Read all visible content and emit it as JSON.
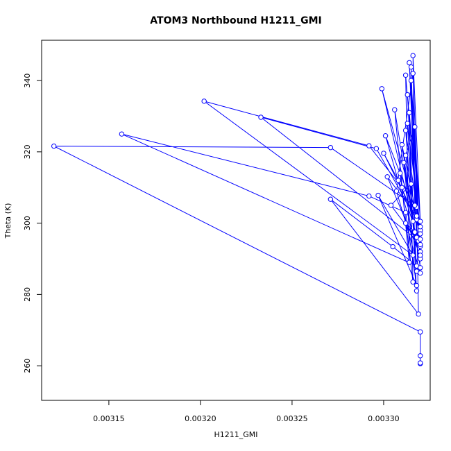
{
  "chart_data": {
    "type": "line",
    "title": "ATOM3 Northbound H1211_GMI",
    "x_label": "H1211_GMI",
    "y_label": "Theta (K)",
    "color": "#0000ff",
    "markers": true,
    "xlim": [
      0.0031133,
      0.0033254
    ],
    "ylim": [
      250.3,
      351.3
    ],
    "xticks": [
      0.00315,
      {
        "value": 0.0032,
        "label": "0.00320"
      },
      0.00325,
      {
        "value": 0.0033,
        "label": "0.00330"
      }
    ],
    "yticks": [
      260,
      280,
      300,
      320,
      340
    ],
    "x": [
      0.00332,
      0.00332,
      0.00332,
      0.00332,
      0.00312,
      0.003271,
      0.003318,
      0.003319,
      0.003271,
      0.003305,
      0.003318,
      0.003157,
      0.003292,
      0.003312,
      0.003318,
      0.003297,
      0.003316,
      0.003202,
      0.003292,
      0.00331,
      0.003319,
      0.003233,
      0.003296,
      0.003318,
      0.0033,
      0.003308,
      0.00332,
      0.003299,
      0.003316,
      0.003306,
      0.003314,
      0.003312,
      0.00332,
      0.003314,
      0.003318,
      0.003315,
      0.003317,
      0.003316,
      0.00332,
      0.003315,
      0.00332,
      0.003313,
      0.003318,
      0.003312,
      0.00332,
      0.00331,
      0.00332,
      0.003311,
      0.003318,
      0.003313,
      0.00332,
      0.003309,
      0.003316,
      0.003314,
      0.00332,
      0.003312,
      0.003317,
      0.00332,
      0.003307,
      0.003316,
      0.00332,
      0.003301,
      0.003318,
      0.003302,
      0.00332,
      0.003315,
      0.003304,
      0.00332,
      0.003312,
      0.003317
    ],
    "values": [
      260.6,
      260.8,
      262.8,
      269.5,
      321.6,
      321.2,
      304.5,
      274.5,
      306.7,
      293.4,
      288,
      325.0,
      307.6,
      303.0,
      282.5,
      307.8,
      291.0,
      334.2,
      321.7,
      310,
      295,
      329.7,
      320.9,
      301,
      319.6,
      312,
      298,
      337.7,
      300.5,
      331.8,
      289,
      341.5,
      292,
      345,
      296,
      343.8,
      305,
      347,
      300.5,
      340,
      293.5,
      336,
      286.5,
      326,
      297,
      322,
      287.5,
      317,
      281,
      328,
      299,
      314,
      283.5,
      331,
      295.5,
      319,
      327,
      286,
      309,
      342,
      290,
      324.5,
      302,
      313,
      291,
      311,
      305,
      294,
      300,
      297.5
    ]
  }
}
